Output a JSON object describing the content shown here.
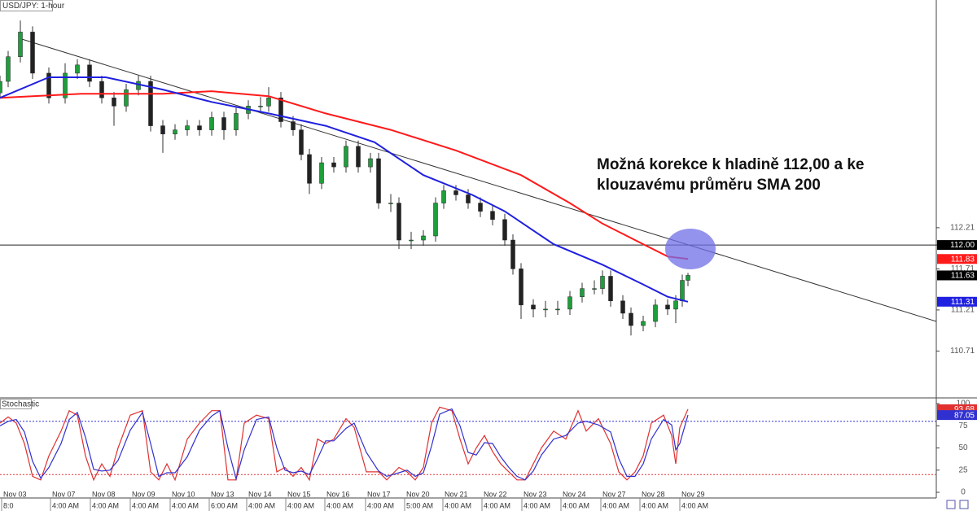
{
  "chart_data": [
    {
      "type": "candlestick",
      "title": "USD/JPY: 1-hour",
      "x": [
        0,
        5,
        12.5,
        20,
        30,
        40,
        47.5,
        55,
        62.5,
        70,
        77.5,
        85,
        92.5,
        100,
        107.5,
        115,
        122.5,
        130,
        137.5,
        145,
        152.5,
        160,
        165,
        172.5,
        180,
        185,
        190,
        197.5,
        205,
        212.5,
        220,
        227.5,
        232.5,
        240,
        245,
        252.5,
        260,
        267.5,
        272.5,
        280,
        287.5,
        295,
        302.5,
        310,
        315,
        320,
        327.5,
        335,
        342.5,
        350,
        357.5,
        365,
        370,
        375,
        382.5,
        387.5,
        395,
        402.5,
        410,
        415,
        419,
        422.5
      ],
      "open": [
        113.85,
        113.99,
        114.29,
        114.59,
        114.09,
        113.79,
        114.09,
        114.19,
        113.99,
        113.79,
        113.69,
        113.89,
        113.99,
        113.45,
        113.35,
        113.4,
        113.45,
        113.4,
        113.55,
        113.4,
        113.6,
        113.69,
        113.69,
        113.79,
        113.5,
        113.4,
        113.1,
        112.75,
        113.0,
        112.95,
        113.2,
        112.95,
        113.05,
        112.51,
        112.51,
        112.06,
        112.06,
        112.11,
        112.51,
        112.66,
        112.61,
        112.51,
        112.41,
        112.31,
        112.06,
        111.71,
        111.27,
        111.22,
        111.22,
        111.22,
        111.37,
        111.47,
        111.47,
        111.62,
        111.32,
        111.17,
        111.02,
        111.07,
        111.27,
        111.22,
        111.32,
        111.57
      ],
      "high": [
        114.06,
        114.36,
        114.73,
        114.66,
        114.16,
        114.21,
        114.26,
        114.26,
        114.06,
        113.86,
        113.96,
        114.06,
        114.06,
        113.52,
        113.47,
        113.52,
        113.52,
        113.62,
        113.62,
        113.67,
        113.76,
        113.8,
        113.92,
        113.86,
        113.57,
        113.47,
        113.17,
        113.07,
        113.07,
        113.27,
        113.27,
        113.12,
        113.12,
        112.62,
        112.58,
        112.16,
        112.18,
        112.58,
        112.73,
        112.73,
        112.68,
        112.58,
        112.48,
        112.38,
        112.13,
        111.78,
        111.34,
        111.32,
        111.32,
        111.44,
        111.54,
        111.57,
        111.69,
        111.69,
        111.39,
        111.24,
        111.14,
        111.34,
        111.34,
        111.39,
        111.64,
        111.66
      ],
      "low": [
        113.78,
        113.92,
        114.22,
        114.02,
        113.72,
        113.72,
        114.02,
        113.92,
        113.72,
        113.45,
        113.62,
        113.82,
        113.38,
        113.12,
        113.28,
        113.33,
        113.33,
        113.33,
        113.28,
        113.33,
        113.53,
        113.6,
        113.62,
        113.43,
        113.33,
        113.03,
        112.62,
        112.68,
        112.88,
        112.88,
        112.88,
        112.88,
        112.44,
        112.4,
        111.95,
        111.95,
        111.99,
        112.04,
        112.44,
        112.54,
        112.44,
        112.34,
        112.24,
        111.99,
        111.64,
        111.1,
        111.12,
        111.12,
        111.15,
        111.15,
        111.3,
        111.4,
        111.4,
        111.25,
        111.1,
        110.9,
        110.95,
        111.0,
        111.15,
        111.05,
        111.25,
        111.5
      ],
      "close": [
        113.99,
        114.29,
        114.59,
        114.09,
        113.79,
        114.09,
        114.19,
        113.99,
        113.79,
        113.69,
        113.89,
        113.99,
        113.45,
        113.35,
        113.4,
        113.45,
        113.4,
        113.55,
        113.4,
        113.6,
        113.69,
        113.69,
        113.79,
        113.5,
        113.4,
        113.1,
        112.75,
        113.0,
        112.95,
        113.2,
        112.95,
        113.05,
        112.51,
        112.51,
        112.06,
        112.06,
        112.11,
        112.51,
        112.66,
        112.61,
        112.51,
        112.41,
        112.31,
        112.06,
        111.71,
        111.27,
        111.22,
        111.22,
        111.22,
        111.37,
        111.47,
        111.47,
        111.62,
        111.32,
        111.17,
        111.02,
        111.07,
        111.27,
        111.22,
        111.32,
        111.57,
        111.63
      ],
      "up_color": "#1e9e3c",
      "down_color": "#222222",
      "series": [
        {
          "color": "#ff1a1a",
          "x": [
            0,
            50,
            100,
            130,
            165,
            200,
            240,
            280,
            320,
            350,
            370,
            395,
            410,
            422.5
          ],
          "values": [
            113.79,
            113.84,
            113.84,
            113.87,
            113.81,
            113.6,
            113.4,
            113.15,
            112.85,
            112.51,
            112.26,
            112.01,
            111.86,
            111.83
          ]
        },
        {
          "color": "#2020e0",
          "x": [
            0,
            30,
            65,
            100,
            130,
            165,
            200,
            230,
            260,
            290,
            310,
            340,
            370,
            395,
            410,
            422.5
          ],
          "values": [
            113.79,
            114.04,
            114.04,
            113.89,
            113.74,
            113.6,
            113.45,
            113.25,
            112.85,
            112.61,
            112.41,
            112.01,
            111.76,
            111.52,
            111.37,
            111.31
          ]
        }
      ],
      "trendline": {
        "x": [
          12.5,
          575
        ],
        "values": [
          114.51,
          111.07
        ]
      },
      "hline": {
        "value": 112,
        "label": "112.00"
      },
      "annotation": [
        "Možná korekce k hladině 112,00 a ke",
        "klouzavému průměru SMA 200"
      ],
      "xlim": [
        0,
        575
      ],
      "ylim": [
        110.15,
        114.98
      ],
      "yticks": [
        112.21,
        111.71,
        111.21,
        110.71
      ]
    },
    {
      "type": "line",
      "title": "Stochastic",
      "x": [
        0,
        5,
        10,
        15,
        20,
        25,
        30,
        37.5,
        42.5,
        47.5,
        52.5,
        57.5,
        62.5,
        67.5,
        72.5,
        80,
        87.5,
        92.5,
        97.5,
        102.5,
        107.5,
        115,
        122.5,
        130,
        135,
        140,
        145,
        150,
        157.5,
        165,
        170,
        175,
        180,
        185,
        190,
        195,
        200,
        205,
        212.5,
        217.5,
        225,
        232.5,
        237.5,
        245,
        250,
        255,
        260,
        265,
        270,
        277.5,
        282.5,
        287.5,
        292.5,
        297.5,
        302.5,
        307.5,
        312.5,
        317.5,
        322.5,
        327.5,
        332.5,
        340,
        347.5,
        355,
        360,
        367.5,
        375,
        380,
        385,
        390,
        395,
        400,
        407.5,
        412.5,
        415,
        417.5,
        422.5
      ],
      "series": [
        {
          "color": "#e03030",
          "values": [
            78,
            85,
            78,
            55,
            18,
            14,
            41,
            69,
            92,
            87,
            41,
            14,
            32,
            18,
            50,
            87,
            92,
            23,
            14,
            32,
            14,
            60,
            78,
            92,
            92,
            14,
            14,
            78,
            87,
            83,
            23,
            28,
            18,
            28,
            14,
            60,
            55,
            60,
            83,
            73,
            23,
            23,
            14,
            28,
            23,
            14,
            28,
            78,
            96,
            92,
            60,
            32,
            50,
            64,
            46,
            32,
            23,
            14,
            14,
            32,
            50,
            69,
            60,
            92,
            69,
            83,
            55,
            23,
            14,
            23,
            41,
            78,
            87,
            64,
            32,
            73,
            93.68
          ]
        },
        {
          "color": "#3030d0",
          "values": [
            75,
            80,
            82,
            68,
            35,
            16,
            28,
            55,
            82,
            90,
            62,
            26,
            24,
            25,
            36,
            70,
            90,
            55,
            18,
            22,
            22,
            40,
            70,
            86,
            92,
            50,
            15,
            48,
            82,
            85,
            50,
            25,
            22,
            24,
            20,
            38,
            58,
            58,
            72,
            78,
            45,
            24,
            18,
            22,
            25,
            18,
            22,
            52,
            88,
            94,
            75,
            45,
            42,
            56,
            55,
            40,
            28,
            18,
            14,
            24,
            42,
            60,
            64,
            78,
            80,
            76,
            68,
            38,
            18,
            18,
            32,
            60,
            82,
            76,
            48,
            55,
            87.05
          ]
        }
      ],
      "levels": [
        {
          "value": 80,
          "color": "#3030d0"
        },
        {
          "value": 20,
          "color": "#e03030"
        }
      ],
      "xlim": [
        0,
        575
      ],
      "ylim": [
        -6.4,
        105.5
      ],
      "yticks": [
        100,
        75,
        50,
        25,
        0
      ],
      "xticks": [
        {
          "value": 1,
          "label": "Nov 03",
          "time": "8:0"
        },
        {
          "value": 31,
          "label": "Nov 07",
          "time": "4:00 AM"
        },
        {
          "value": 55.5,
          "label": "Nov 08",
          "time": "4:00 AM"
        },
        {
          "value": 80,
          "label": "Nov 09",
          "time": "4:00 AM"
        },
        {
          "value": 104.5,
          "label": "Nov 10",
          "time": "4:00 AM"
        },
        {
          "value": 128.5,
          "label": "Nov 13",
          "time": "6:00 AM"
        },
        {
          "value": 151.5,
          "label": "Nov 14",
          "time": "4:00 AM"
        },
        {
          "value": 175.5,
          "label": "Nov 15",
          "time": "4:00 AM"
        },
        {
          "value": 199.5,
          "label": "Nov 16",
          "time": "4:00 AM"
        },
        {
          "value": 224.5,
          "label": "Nov 17",
          "time": "4:00 AM"
        },
        {
          "value": 248.5,
          "label": "Nov 20",
          "time": "5:00 AM"
        },
        {
          "value": 272,
          "label": "Nov 21",
          "time": "4:00 AM"
        },
        {
          "value": 296,
          "label": "Nov 22",
          "time": "4:00 AM"
        },
        {
          "value": 320.5,
          "label": "Nov 23",
          "time": "4:00 AM"
        },
        {
          "value": 344.5,
          "label": "Nov 24",
          "time": "4:00 AM"
        },
        {
          "value": 369,
          "label": "Nov 27",
          "time": "4:00 AM"
        },
        {
          "value": 393,
          "label": "Nov 28",
          "time": "4:00 AM"
        },
        {
          "value": 417.5,
          "label": "Nov 29",
          "time": "4:00 AM"
        }
      ]
    }
  ]
}
